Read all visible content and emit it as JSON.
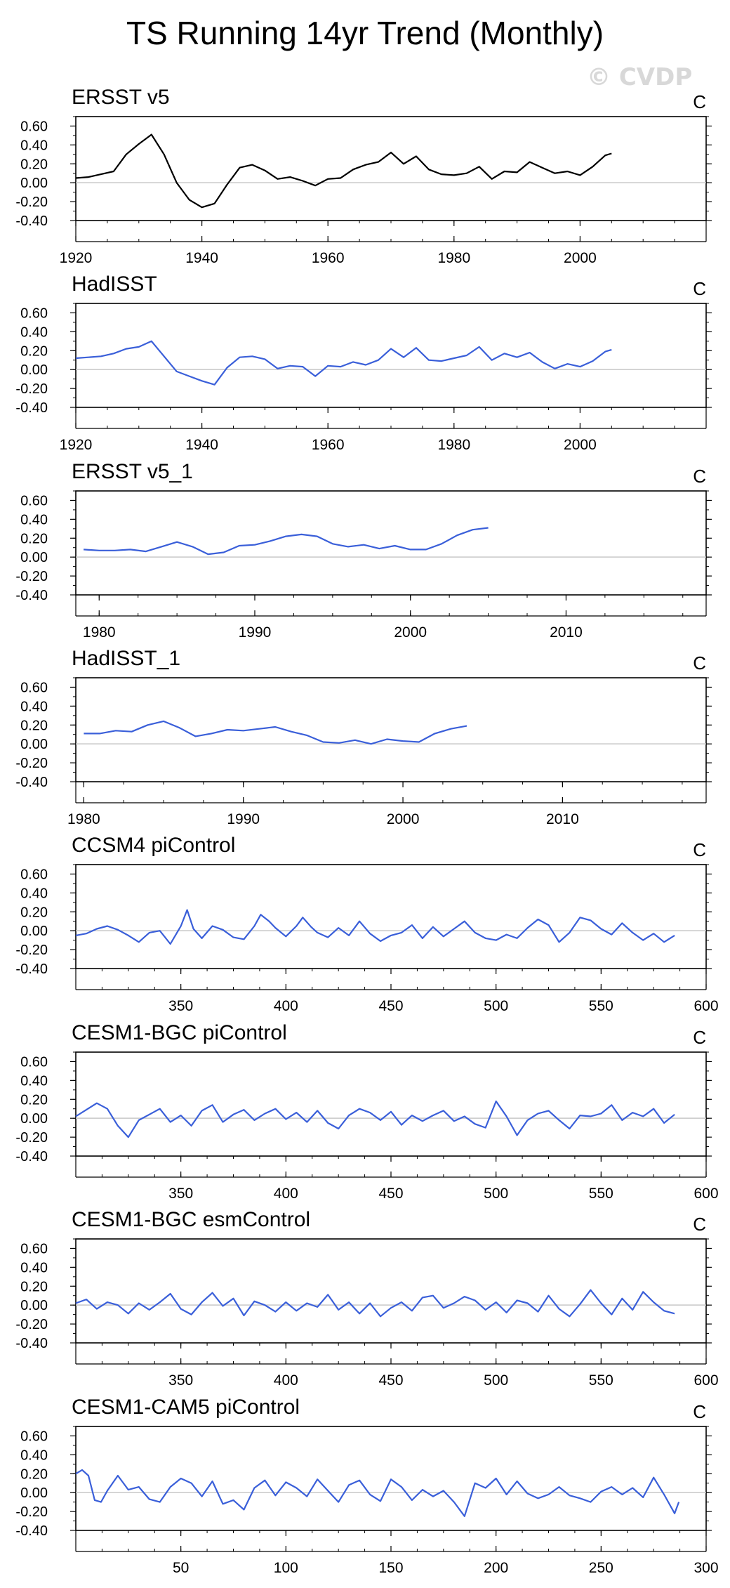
{
  "title": "TS Running 14yr Trend (Monthly)",
  "watermark": "© CVDP",
  "style": {
    "obs_color": "#000000",
    "model_color": "#3a5fd9",
    "zero_line": "#c8c8c8"
  },
  "chart_data": [
    {
      "type": "line",
      "title": "ERSST v5",
      "unit": "C",
      "ylim": [
        -0.4,
        0.7
      ],
      "yticks": [
        0.6,
        0.4,
        0.2,
        0.0,
        -0.2,
        -0.4
      ],
      "yticklabels": [
        "0.60",
        "0.40",
        "0.20",
        "0.00",
        "-0.20",
        "-0.40"
      ],
      "xlim": [
        1920,
        2020
      ],
      "xticks": [
        1920,
        1940,
        1960,
        1980,
        2000
      ],
      "color": "obs",
      "x": [
        1920,
        1922,
        1924,
        1926,
        1928,
        1930,
        1932,
        1934,
        1936,
        1938,
        1940,
        1942,
        1944,
        1946,
        1948,
        1950,
        1952,
        1954,
        1956,
        1958,
        1960,
        1962,
        1964,
        1966,
        1968,
        1970,
        1972,
        1974,
        1976,
        1978,
        1980,
        1982,
        1984,
        1986,
        1988,
        1990,
        1992,
        1994,
        1996,
        1998,
        2000,
        2002,
        2004,
        2005
      ],
      "y": [
        0.05,
        0.06,
        0.09,
        0.12,
        0.3,
        0.41,
        0.51,
        0.3,
        0.0,
        -0.18,
        -0.26,
        -0.22,
        -0.02,
        0.16,
        0.19,
        0.13,
        0.04,
        0.06,
        0.02,
        -0.03,
        0.04,
        0.05,
        0.14,
        0.19,
        0.22,
        0.32,
        0.2,
        0.28,
        0.14,
        0.09,
        0.08,
        0.1,
        0.17,
        0.04,
        0.12,
        0.11,
        0.22,
        0.16,
        0.1,
        0.12,
        0.08,
        0.17,
        0.29,
        0.31
      ]
    },
    {
      "type": "line",
      "title": "HadISST",
      "unit": "C",
      "ylim": [
        -0.4,
        0.7
      ],
      "yticks": [
        0.6,
        0.4,
        0.2,
        0.0,
        -0.2,
        -0.4
      ],
      "yticklabels": [
        "0.60",
        "0.40",
        "0.20",
        "0.00",
        "-0.20",
        "-0.40"
      ],
      "xlim": [
        1920,
        2020
      ],
      "xticks": [
        1920,
        1940,
        1960,
        1980,
        2000
      ],
      "color": "model",
      "x": [
        1920,
        1922,
        1924,
        1926,
        1928,
        1930,
        1932,
        1934,
        1936,
        1938,
        1940,
        1942,
        1944,
        1946,
        1948,
        1950,
        1952,
        1954,
        1956,
        1958,
        1960,
        1962,
        1964,
        1966,
        1968,
        1970,
        1972,
        1974,
        1976,
        1978,
        1980,
        1982,
        1984,
        1986,
        1988,
        1990,
        1992,
        1994,
        1996,
        1998,
        2000,
        2002,
        2004,
        2005
      ],
      "y": [
        0.12,
        0.13,
        0.14,
        0.17,
        0.22,
        0.24,
        0.3,
        0.14,
        -0.02,
        -0.07,
        -0.12,
        -0.16,
        0.02,
        0.13,
        0.14,
        0.11,
        0.01,
        0.04,
        0.03,
        -0.07,
        0.04,
        0.03,
        0.08,
        0.05,
        0.1,
        0.22,
        0.13,
        0.23,
        0.1,
        0.09,
        0.12,
        0.15,
        0.24,
        0.1,
        0.17,
        0.13,
        0.18,
        0.08,
        0.01,
        0.06,
        0.03,
        0.09,
        0.19,
        0.21
      ]
    },
    {
      "type": "line",
      "title": "ERSST v5_1",
      "unit": "C",
      "ylim": [
        -0.4,
        0.7
      ],
      "yticks": [
        0.6,
        0.4,
        0.2,
        0.0,
        -0.2,
        -0.4
      ],
      "yticklabels": [
        "0.60",
        "0.40",
        "0.20",
        "0.00",
        "-0.20",
        "-0.40"
      ],
      "xlim": [
        1978.5,
        2019
      ],
      "xticks": [
        1980,
        1990,
        2000,
        2010
      ],
      "color": "model",
      "x": [
        1979,
        1980,
        1981,
        1982,
        1983,
        1984,
        1985,
        1986,
        1987,
        1988,
        1989,
        1990,
        1991,
        1992,
        1993,
        1994,
        1995,
        1996,
        1997,
        1998,
        1999,
        2000,
        2001,
        2002,
        2003,
        2004,
        2005
      ],
      "y": [
        0.08,
        0.07,
        0.07,
        0.08,
        0.06,
        0.11,
        0.16,
        0.11,
        0.03,
        0.05,
        0.12,
        0.13,
        0.17,
        0.22,
        0.24,
        0.22,
        0.14,
        0.11,
        0.13,
        0.09,
        0.12,
        0.08,
        0.08,
        0.14,
        0.23,
        0.29,
        0.31
      ]
    },
    {
      "type": "line",
      "title": "HadISST_1",
      "unit": "C",
      "ylim": [
        -0.4,
        0.7
      ],
      "yticks": [
        0.6,
        0.4,
        0.2,
        0.0,
        -0.2,
        -0.4
      ],
      "yticklabels": [
        "0.60",
        "0.40",
        "0.20",
        "0.00",
        "-0.20",
        "-0.40"
      ],
      "xlim": [
        1979.5,
        2019
      ],
      "xticks": [
        1980,
        1990,
        2000,
        2010
      ],
      "color": "model",
      "x": [
        1980,
        1981,
        1982,
        1983,
        1984,
        1985,
        1986,
        1987,
        1988,
        1989,
        1990,
        1991,
        1992,
        1993,
        1994,
        1995,
        1996,
        1997,
        1998,
        1999,
        2000,
        2001,
        2002,
        2003,
        2004
      ],
      "y": [
        0.11,
        0.11,
        0.14,
        0.13,
        0.2,
        0.24,
        0.17,
        0.08,
        0.11,
        0.15,
        0.14,
        0.16,
        0.18,
        0.13,
        0.09,
        0.02,
        0.01,
        0.04,
        0.0,
        0.05,
        0.03,
        0.02,
        0.11,
        0.16,
        0.19
      ]
    },
    {
      "type": "line",
      "title": "CCSM4 piControl",
      "unit": "C",
      "ylim": [
        -0.4,
        0.7
      ],
      "yticks": [
        0.6,
        0.4,
        0.2,
        0.0,
        -0.2,
        -0.4
      ],
      "yticklabels": [
        "0.60",
        "0.40",
        "0.20",
        "0.00",
        "-0.20",
        "-0.40"
      ],
      "xlim": [
        300,
        600
      ],
      "xticks": [
        350,
        400,
        450,
        500,
        550,
        600
      ],
      "color": "model",
      "x": [
        300,
        305,
        310,
        315,
        320,
        325,
        330,
        335,
        340,
        345,
        350,
        353,
        356,
        360,
        365,
        370,
        375,
        380,
        385,
        388,
        392,
        395,
        400,
        405,
        408,
        412,
        415,
        420,
        425,
        430,
        435,
        440,
        445,
        450,
        455,
        460,
        465,
        470,
        475,
        480,
        485,
        490,
        495,
        500,
        505,
        510,
        515,
        520,
        525,
        530,
        535,
        540,
        545,
        550,
        555,
        560,
        565,
        570,
        575,
        580,
        585
      ],
      "y": [
        -0.05,
        -0.03,
        0.02,
        0.05,
        0.01,
        -0.05,
        -0.12,
        -0.02,
        0.0,
        -0.14,
        0.05,
        0.22,
        0.02,
        -0.08,
        0.05,
        0.01,
        -0.07,
        -0.09,
        0.05,
        0.17,
        0.1,
        0.03,
        -0.06,
        0.05,
        0.14,
        0.04,
        -0.02,
        -0.07,
        0.03,
        -0.05,
        0.1,
        -0.03,
        -0.11,
        -0.05,
        -0.02,
        0.06,
        -0.08,
        0.04,
        -0.06,
        0.02,
        0.1,
        -0.02,
        -0.08,
        -0.1,
        -0.04,
        -0.08,
        0.03,
        0.12,
        0.06,
        -0.12,
        -0.02,
        0.14,
        0.11,
        0.02,
        -0.04,
        0.08,
        -0.02,
        -0.1,
        -0.03,
        -0.12,
        -0.05
      ]
    },
    {
      "type": "line",
      "title": "CESM1-BGC piControl",
      "unit": "C",
      "ylim": [
        -0.4,
        0.7
      ],
      "yticks": [
        0.6,
        0.4,
        0.2,
        0.0,
        -0.2,
        -0.4
      ],
      "yticklabels": [
        "0.60",
        "0.40",
        "0.20",
        "0.00",
        "-0.20",
        "-0.40"
      ],
      "xlim": [
        300,
        600
      ],
      "xticks": [
        350,
        400,
        450,
        500,
        550,
        600
      ],
      "color": "model",
      "x": [
        300,
        305,
        310,
        315,
        320,
        325,
        330,
        335,
        340,
        345,
        350,
        355,
        360,
        365,
        370,
        375,
        380,
        385,
        390,
        395,
        400,
        405,
        410,
        415,
        420,
        425,
        430,
        435,
        440,
        445,
        450,
        455,
        460,
        465,
        470,
        475,
        480,
        485,
        490,
        495,
        500,
        505,
        510,
        515,
        520,
        525,
        530,
        535,
        540,
        545,
        550,
        555,
        560,
        565,
        570,
        575,
        580,
        585
      ],
      "y": [
        0.02,
        0.09,
        0.16,
        0.1,
        -0.08,
        -0.2,
        -0.02,
        0.04,
        0.1,
        -0.04,
        0.03,
        -0.08,
        0.08,
        0.14,
        -0.04,
        0.04,
        0.09,
        -0.02,
        0.05,
        0.1,
        -0.01,
        0.06,
        -0.04,
        0.08,
        -0.05,
        -0.11,
        0.03,
        0.1,
        0.06,
        -0.02,
        0.07,
        -0.07,
        0.03,
        -0.03,
        0.03,
        0.08,
        -0.03,
        0.02,
        -0.06,
        -0.1,
        0.18,
        0.02,
        -0.18,
        -0.02,
        0.05,
        0.08,
        -0.02,
        -0.11,
        0.03,
        0.02,
        0.05,
        0.14,
        -0.02,
        0.06,
        0.02,
        0.1,
        -0.05,
        0.04
      ]
    },
    {
      "type": "line",
      "title": "CESM1-BGC esmControl",
      "unit": "C",
      "ylim": [
        -0.4,
        0.7
      ],
      "yticks": [
        0.6,
        0.4,
        0.2,
        0.0,
        -0.2,
        -0.4
      ],
      "yticklabels": [
        "0.60",
        "0.40",
        "0.20",
        "0.00",
        "-0.20",
        "-0.40"
      ],
      "xlim": [
        300,
        600
      ],
      "xticks": [
        350,
        400,
        450,
        500,
        550,
        600
      ],
      "color": "model",
      "x": [
        300,
        305,
        310,
        315,
        320,
        325,
        330,
        335,
        340,
        345,
        350,
        355,
        360,
        365,
        370,
        375,
        380,
        385,
        390,
        395,
        400,
        405,
        410,
        415,
        420,
        425,
        430,
        435,
        440,
        445,
        450,
        455,
        460,
        465,
        470,
        475,
        480,
        485,
        490,
        495,
        500,
        505,
        510,
        515,
        520,
        525,
        530,
        535,
        540,
        545,
        550,
        555,
        560,
        565,
        570,
        575,
        580,
        585
      ],
      "y": [
        0.02,
        0.06,
        -0.04,
        0.03,
        0.0,
        -0.09,
        0.02,
        -0.05,
        0.03,
        0.12,
        -0.04,
        -0.1,
        0.03,
        0.13,
        -0.01,
        0.07,
        -0.11,
        0.04,
        0.0,
        -0.07,
        0.03,
        -0.06,
        0.02,
        -0.02,
        0.11,
        -0.05,
        0.03,
        -0.09,
        0.02,
        -0.12,
        -0.03,
        0.03,
        -0.06,
        0.08,
        0.1,
        -0.03,
        0.02,
        0.09,
        0.05,
        -0.05,
        0.03,
        -0.08,
        0.05,
        0.02,
        -0.07,
        0.1,
        -0.04,
        -0.12,
        0.01,
        0.16,
        0.02,
        -0.1,
        0.07,
        -0.05,
        0.14,
        0.03,
        -0.06,
        -0.09
      ]
    },
    {
      "type": "line",
      "title": "CESM1-CAM5 piControl",
      "unit": "C",
      "ylim": [
        -0.4,
        0.7
      ],
      "yticks": [
        0.6,
        0.4,
        0.2,
        0.0,
        -0.2,
        -0.4
      ],
      "yticklabels": [
        "0.60",
        "0.40",
        "0.20",
        "0.00",
        "-0.20",
        "-0.40"
      ],
      "xlim": [
        0,
        300
      ],
      "xticks": [
        50,
        100,
        150,
        200,
        250,
        300
      ],
      "color": "model",
      "x": [
        0,
        3,
        6,
        9,
        12,
        15,
        20,
        25,
        30,
        35,
        40,
        45,
        50,
        55,
        60,
        65,
        70,
        75,
        80,
        85,
        90,
        95,
        100,
        105,
        110,
        115,
        120,
        125,
        130,
        135,
        140,
        145,
        150,
        155,
        160,
        165,
        170,
        175,
        180,
        185,
        190,
        195,
        200,
        205,
        210,
        215,
        220,
        225,
        230,
        235,
        240,
        245,
        250,
        255,
        260,
        265,
        270,
        275,
        280,
        285,
        287
      ],
      "y": [
        0.2,
        0.24,
        0.18,
        -0.08,
        -0.1,
        0.02,
        0.18,
        0.03,
        0.06,
        -0.07,
        -0.1,
        0.06,
        0.15,
        0.1,
        -0.04,
        0.12,
        -0.12,
        -0.08,
        -0.18,
        0.05,
        0.13,
        -0.03,
        0.11,
        0.05,
        -0.04,
        0.14,
        0.02,
        -0.1,
        0.08,
        0.13,
        -0.02,
        -0.09,
        0.14,
        0.06,
        -0.08,
        0.03,
        -0.04,
        0.02,
        -0.1,
        -0.25,
        0.1,
        0.05,
        0.15,
        -0.02,
        0.12,
        -0.01,
        -0.06,
        -0.02,
        0.06,
        -0.03,
        -0.06,
        -0.1,
        0.01,
        0.06,
        -0.02,
        0.05,
        -0.05,
        0.16,
        -0.02,
        -0.22,
        -0.1
      ]
    }
  ]
}
